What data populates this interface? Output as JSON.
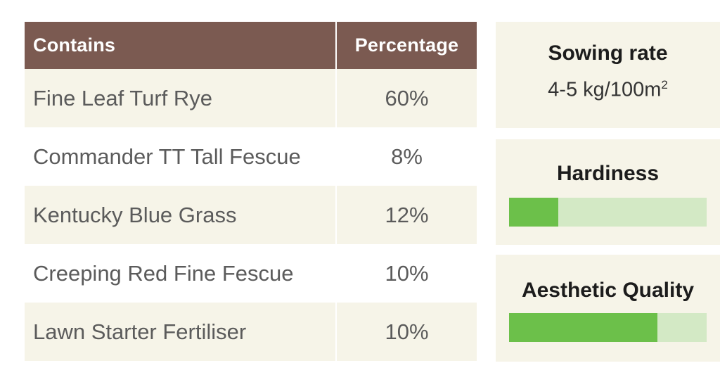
{
  "table": {
    "headers": [
      "Contains",
      "Percentage"
    ],
    "rows": [
      {
        "name": "Fine Leaf Turf Rye",
        "percent": "60%"
      },
      {
        "name": "Commander TT Tall Fescue",
        "percent": "8%"
      },
      {
        "name": "Kentucky Blue Grass",
        "percent": "12%"
      },
      {
        "name": "Creeping Red Fine Fescue",
        "percent": "10%"
      },
      {
        "name": "Lawn Starter Fertiliser",
        "percent": "10%"
      }
    ]
  },
  "sowing": {
    "title": "Sowing rate",
    "value": "4-5 kg/100m",
    "unit_superscript": "2"
  },
  "hardiness": {
    "title": "Hardiness",
    "level_fraction": 0.25
  },
  "aesthetic": {
    "title": "Aesthetic Quality",
    "level_fraction": 0.75
  },
  "colors": {
    "header": "#7b5a51",
    "row_shade": "#f6f4e8",
    "bar_fill": "#6cc04a",
    "bar_track": "#d3e9c5"
  }
}
